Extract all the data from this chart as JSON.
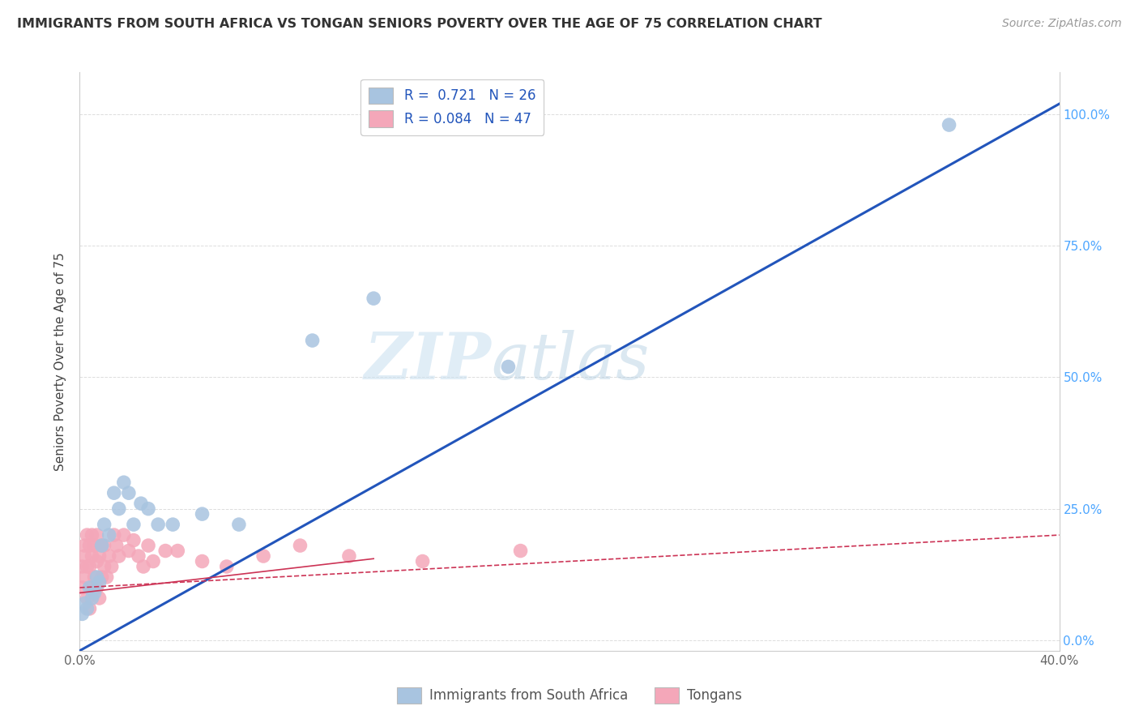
{
  "title": "IMMIGRANTS FROM SOUTH AFRICA VS TONGAN SENIORS POVERTY OVER THE AGE OF 75 CORRELATION CHART",
  "source": "Source: ZipAtlas.com",
  "ylabel": "Seniors Poverty Over the Age of 75",
  "xlim": [
    0.0,
    0.4
  ],
  "ylim": [
    -0.02,
    1.08
  ],
  "x_ticks": [
    0.0,
    0.1,
    0.2,
    0.3,
    0.4
  ],
  "x_tick_labels": [
    "0.0%",
    "",
    "",
    "",
    "40.0%"
  ],
  "y_ticks": [
    0.0,
    0.25,
    0.5,
    0.75,
    1.0
  ],
  "y_tick_labels": [
    "0.0%",
    "25.0%",
    "50.0%",
    "75.0%",
    "100.0%"
  ],
  "blue_R": 0.721,
  "blue_N": 26,
  "pink_R": 0.084,
  "pink_N": 47,
  "legend_label_blue": "Immigrants from South Africa",
  "legend_label_pink": "Tongans",
  "dot_color_blue": "#a8c4e0",
  "dot_color_pink": "#f4a7b9",
  "line_color_blue": "#2255bb",
  "line_color_pink": "#cc3355",
  "watermark_zip": "ZIP",
  "watermark_atlas": "atlas",
  "blue_points_x": [
    0.001,
    0.002,
    0.003,
    0.004,
    0.005,
    0.006,
    0.007,
    0.008,
    0.009,
    0.01,
    0.012,
    0.014,
    0.016,
    0.018,
    0.02,
    0.022,
    0.025,
    0.028,
    0.032,
    0.038,
    0.05,
    0.065,
    0.095,
    0.12,
    0.175,
    0.355
  ],
  "blue_points_y": [
    0.05,
    0.07,
    0.06,
    0.1,
    0.08,
    0.09,
    0.12,
    0.11,
    0.18,
    0.22,
    0.2,
    0.28,
    0.25,
    0.3,
    0.28,
    0.22,
    0.26,
    0.25,
    0.22,
    0.22,
    0.24,
    0.22,
    0.57,
    0.65,
    0.52,
    0.98
  ],
  "pink_points_x": [
    0.001,
    0.001,
    0.002,
    0.002,
    0.002,
    0.003,
    0.003,
    0.003,
    0.004,
    0.004,
    0.004,
    0.005,
    0.005,
    0.005,
    0.006,
    0.006,
    0.007,
    0.007,
    0.007,
    0.008,
    0.008,
    0.009,
    0.009,
    0.01,
    0.01,
    0.011,
    0.012,
    0.013,
    0.014,
    0.015,
    0.016,
    0.018,
    0.02,
    0.022,
    0.024,
    0.026,
    0.028,
    0.03,
    0.035,
    0.04,
    0.05,
    0.06,
    0.075,
    0.09,
    0.11,
    0.14,
    0.18
  ],
  "pink_points_y": [
    0.1,
    0.14,
    0.12,
    0.16,
    0.18,
    0.08,
    0.14,
    0.2,
    0.06,
    0.14,
    0.18,
    0.1,
    0.16,
    0.2,
    0.12,
    0.18,
    0.1,
    0.15,
    0.2,
    0.08,
    0.16,
    0.12,
    0.18,
    0.14,
    0.18,
    0.12,
    0.16,
    0.14,
    0.2,
    0.18,
    0.16,
    0.2,
    0.17,
    0.19,
    0.16,
    0.14,
    0.18,
    0.15,
    0.17,
    0.17,
    0.15,
    0.14,
    0.16,
    0.18,
    0.16,
    0.15,
    0.17
  ]
}
